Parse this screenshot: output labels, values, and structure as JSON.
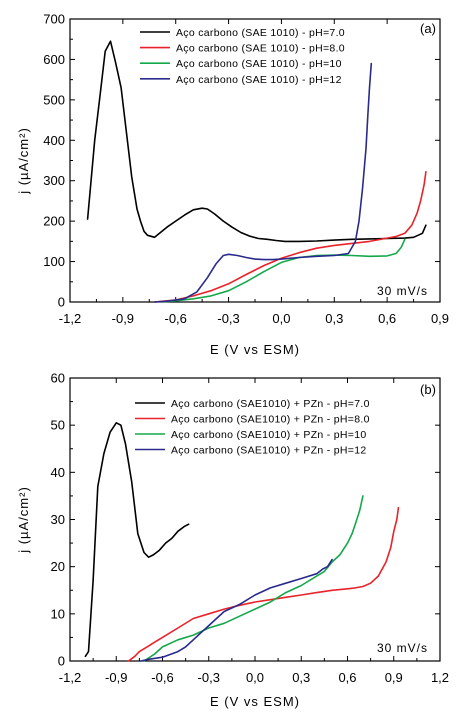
{
  "chart_data": [
    {
      "panel": "(a)",
      "type": "line",
      "annotation": "30 mV/s",
      "xlabel": "E (V vs ESM)",
      "ylabel": "j (µA/cm²)",
      "xlim": [
        -1.2,
        0.9
      ],
      "ylim": [
        0,
        700
      ],
      "xticks": [
        "-1,2",
        "-0,9",
        "-0,6",
        "-0,3",
        "0,0",
        "0,3",
        "0,6",
        "0,9"
      ],
      "yticks": [
        "0",
        "100",
        "200",
        "300",
        "400",
        "500",
        "600",
        "700"
      ],
      "legend_position": "top-right",
      "series": [
        {
          "name": "Aço carbono (SAE 1010) - pH=7.0",
          "color": "#000000",
          "x": [
            -1.1,
            -1.06,
            -1.03,
            -1.0,
            -0.97,
            -0.94,
            -0.91,
            -0.88,
            -0.85,
            -0.82,
            -0.8,
            -0.78,
            -0.76,
            -0.72,
            -0.65,
            -0.6,
            -0.55,
            -0.5,
            -0.45,
            -0.42,
            -0.38,
            -0.33,
            -0.28,
            -0.23,
            -0.18,
            -0.13,
            -0.08,
            -0.03,
            0.02,
            0.1,
            0.2,
            0.3,
            0.4,
            0.5,
            0.6,
            0.7,
            0.75,
            0.8,
            0.82
          ],
          "y": [
            205,
            400,
            510,
            620,
            645,
            590,
            530,
            420,
            310,
            230,
            200,
            175,
            165,
            160,
            185,
            200,
            215,
            228,
            232,
            230,
            218,
            200,
            185,
            172,
            163,
            157,
            155,
            152,
            150,
            150,
            151,
            153,
            155,
            156,
            157,
            158,
            160,
            170,
            190
          ]
        },
        {
          "name": "Aço carbono (SAE 1010) - pH=8.0",
          "color": "#e8232a",
          "x": [
            -0.72,
            -0.65,
            -0.6,
            -0.5,
            -0.4,
            -0.3,
            -0.2,
            -0.1,
            0.0,
            0.1,
            0.2,
            0.3,
            0.4,
            0.5,
            0.6,
            0.65,
            0.7,
            0.74,
            0.77,
            0.79,
            0.81,
            0.82
          ],
          "y": [
            0,
            3,
            5,
            15,
            28,
            45,
            68,
            90,
            108,
            122,
            133,
            140,
            145,
            150,
            158,
            162,
            170,
            190,
            220,
            250,
            290,
            322
          ]
        },
        {
          "name": "Aço carbono (SAE 1010) - pH=10",
          "color": "#15a84b",
          "x": [
            -0.68,
            -0.6,
            -0.5,
            -0.4,
            -0.3,
            -0.2,
            -0.1,
            0.0,
            0.1,
            0.2,
            0.3,
            0.4,
            0.5,
            0.6,
            0.65,
            0.68,
            0.7
          ],
          "y": [
            0,
            3,
            8,
            15,
            28,
            50,
            75,
            98,
            110,
            115,
            116,
            115,
            113,
            114,
            120,
            135,
            155
          ]
        },
        {
          "name": "Aço carbono (SAE 1010) - pH=12",
          "color": "#2a2a8c",
          "x": [
            -0.72,
            -0.65,
            -0.55,
            -0.48,
            -0.42,
            -0.37,
            -0.33,
            -0.3,
            -0.25,
            -0.2,
            -0.15,
            -0.1,
            -0.05,
            0.0,
            0.1,
            0.2,
            0.3,
            0.38,
            0.42,
            0.44,
            0.46,
            0.48,
            0.49,
            0.5,
            0.51
          ],
          "y": [
            0,
            2,
            8,
            25,
            60,
            95,
            115,
            118,
            115,
            110,
            106,
            105,
            105,
            106,
            110,
            113,
            115,
            120,
            150,
            200,
            280,
            380,
            460,
            530,
            590
          ]
        }
      ]
    },
    {
      "panel": "(b)",
      "type": "line",
      "annotation": "30 mV/s",
      "xlabel": "E (V vs ESM)",
      "ylabel": "j (µA/cm²)",
      "xlim": [
        -1.2,
        1.2
      ],
      "ylim": [
        0,
        60
      ],
      "xticks": [
        "-1,2",
        "-0,9",
        "-0,6",
        "-0,3",
        "0,0",
        "0,3",
        "0,6",
        "0,9",
        "1,2"
      ],
      "yticks": [
        "0",
        "10",
        "20",
        "30",
        "40",
        "50",
        "60"
      ],
      "legend_position": "top-right",
      "series": [
        {
          "name": "Aço carbono (SAE1010) + PZn - pH=7.0",
          "color": "#000000",
          "x": [
            -1.1,
            -1.08,
            -1.05,
            -1.02,
            -0.98,
            -0.94,
            -0.9,
            -0.87,
            -0.84,
            -0.8,
            -0.76,
            -0.72,
            -0.69,
            -0.66,
            -0.62,
            -0.58,
            -0.54,
            -0.5,
            -0.46,
            -0.43
          ],
          "y": [
            1,
            2,
            17,
            37,
            44,
            48.5,
            50.5,
            50,
            46,
            38,
            27,
            23,
            22,
            22.5,
            23.5,
            25,
            26,
            27.5,
            28.5,
            29
          ]
        },
        {
          "name": "Aço carbono (SAE1010) + PZn - pH=8.0",
          "color": "#e8232a",
          "x": [
            -0.82,
            -0.78,
            -0.75,
            -0.7,
            -0.65,
            -0.6,
            -0.5,
            -0.4,
            -0.3,
            -0.2,
            -0.1,
            0.0,
            0.1,
            0.2,
            0.3,
            0.4,
            0.5,
            0.6,
            0.65,
            0.7,
            0.75,
            0.8,
            0.85,
            0.88,
            0.9,
            0.92,
            0.93
          ],
          "y": [
            0,
            1,
            2,
            3,
            4,
            5,
            7,
            9,
            10,
            11,
            11.8,
            12.5,
            13,
            13.5,
            14,
            14.5,
            15,
            15.3,
            15.5,
            15.8,
            16.5,
            18,
            21,
            24,
            27.5,
            30,
            32.5
          ]
        },
        {
          "name": "Aço carbono (SAE1010) + PZn - pH=10",
          "color": "#15a84b",
          "x": [
            -0.72,
            -0.65,
            -0.6,
            -0.5,
            -0.4,
            -0.3,
            -0.2,
            -0.1,
            0.0,
            0.1,
            0.2,
            0.3,
            0.4,
            0.45,
            0.5,
            0.55,
            0.6,
            0.63,
            0.66,
            0.68,
            0.7
          ],
          "y": [
            0,
            1.5,
            3,
            4.5,
            5.5,
            7,
            8,
            9.5,
            11,
            12.5,
            14.5,
            16,
            18,
            19,
            21,
            22.5,
            25,
            27,
            30,
            32,
            35
          ]
        },
        {
          "name": "Aço carbono (SAE1010) + PZn - pH=12",
          "color": "#2a2a8c",
          "x": [
            -0.74,
            -0.7,
            -0.6,
            -0.5,
            -0.45,
            -0.4,
            -0.35,
            -0.3,
            -0.25,
            -0.2,
            -0.1,
            0.0,
            0.1,
            0.2,
            0.3,
            0.4,
            0.44,
            0.47,
            0.5
          ],
          "y": [
            0,
            0.3,
            0.8,
            2,
            3,
            4.5,
            6,
            7.5,
            9,
            10.5,
            12,
            14,
            15.5,
            16.5,
            17.5,
            18.5,
            19.5,
            20,
            21.5
          ]
        }
      ]
    }
  ]
}
